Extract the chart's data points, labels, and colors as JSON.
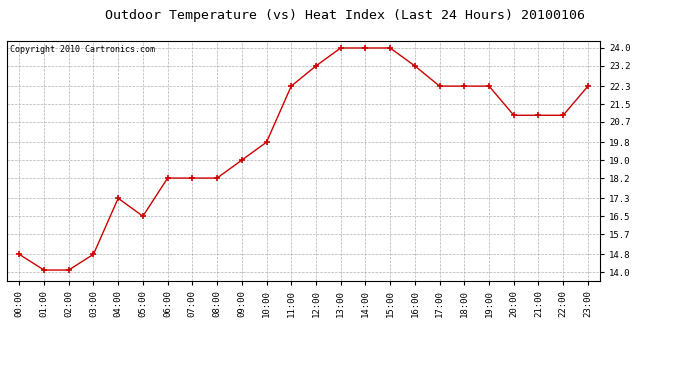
{
  "title": "Outdoor Temperature (vs) Heat Index (Last 24 Hours) 20100106",
  "copyright_text": "Copyright 2010 Cartronics.com",
  "hours": [
    "00:00",
    "01:00",
    "02:00",
    "03:00",
    "04:00",
    "05:00",
    "06:00",
    "07:00",
    "08:00",
    "09:00",
    "10:00",
    "11:00",
    "12:00",
    "13:00",
    "14:00",
    "15:00",
    "16:00",
    "17:00",
    "18:00",
    "19:00",
    "20:00",
    "21:00",
    "22:00",
    "23:00"
  ],
  "values": [
    14.8,
    14.1,
    14.1,
    14.8,
    17.3,
    16.5,
    18.2,
    18.2,
    18.2,
    19.0,
    19.8,
    22.3,
    23.2,
    24.0,
    24.0,
    24.0,
    23.2,
    22.3,
    22.3,
    22.3,
    21.0,
    21.0,
    21.0,
    22.3
  ],
  "line_color": "#cc0000",
  "marker_color": "#cc0000",
  "bg_color": "#ffffff",
  "plot_bg_color": "#ffffff",
  "grid_color": "#aaaaaa",
  "yticks": [
    14.0,
    14.8,
    15.7,
    16.5,
    17.3,
    18.2,
    19.0,
    19.8,
    20.7,
    21.5,
    22.3,
    23.2,
    24.0
  ],
  "ylim_min": 13.6,
  "ylim_max": 24.3,
  "title_fontsize": 9.5,
  "copyright_fontsize": 6.0,
  "tick_fontsize": 6.5
}
